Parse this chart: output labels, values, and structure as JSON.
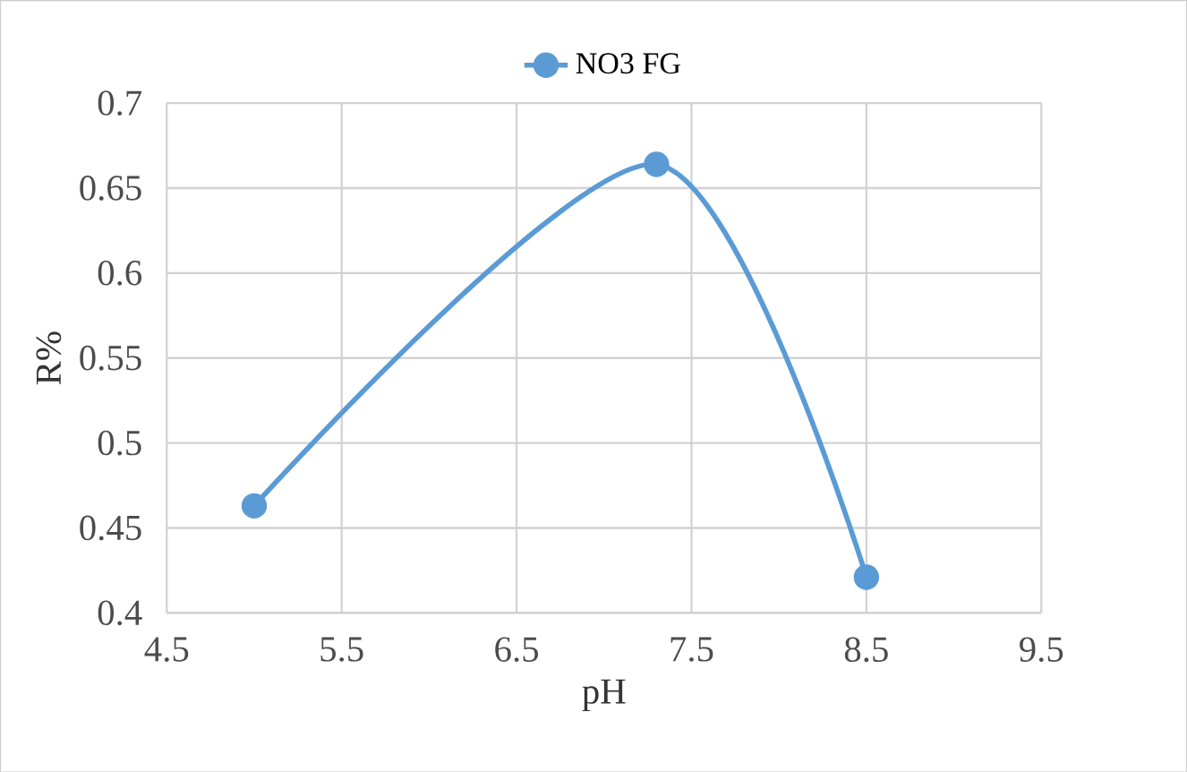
{
  "chart_data": {
    "type": "line",
    "xlabel": "pH",
    "ylabel": "R%",
    "series": [
      {
        "name": "NO3 FG",
        "color": "#5b9bd5",
        "x": [
          5,
          7.3,
          8.5
        ],
        "values": [
          0.463,
          0.664,
          0.421
        ]
      }
    ],
    "xlim": [
      4.5,
      9.5
    ],
    "xticks": [
      4.5,
      5.5,
      6.5,
      7.5,
      8.5,
      9.5
    ],
    "ylim": [
      0.4,
      0.7
    ],
    "yticks": [
      0.4,
      0.45,
      0.5,
      0.55,
      0.6,
      0.65,
      0.7
    ],
    "grid": true,
    "legend": "top",
    "marker": "circle"
  }
}
